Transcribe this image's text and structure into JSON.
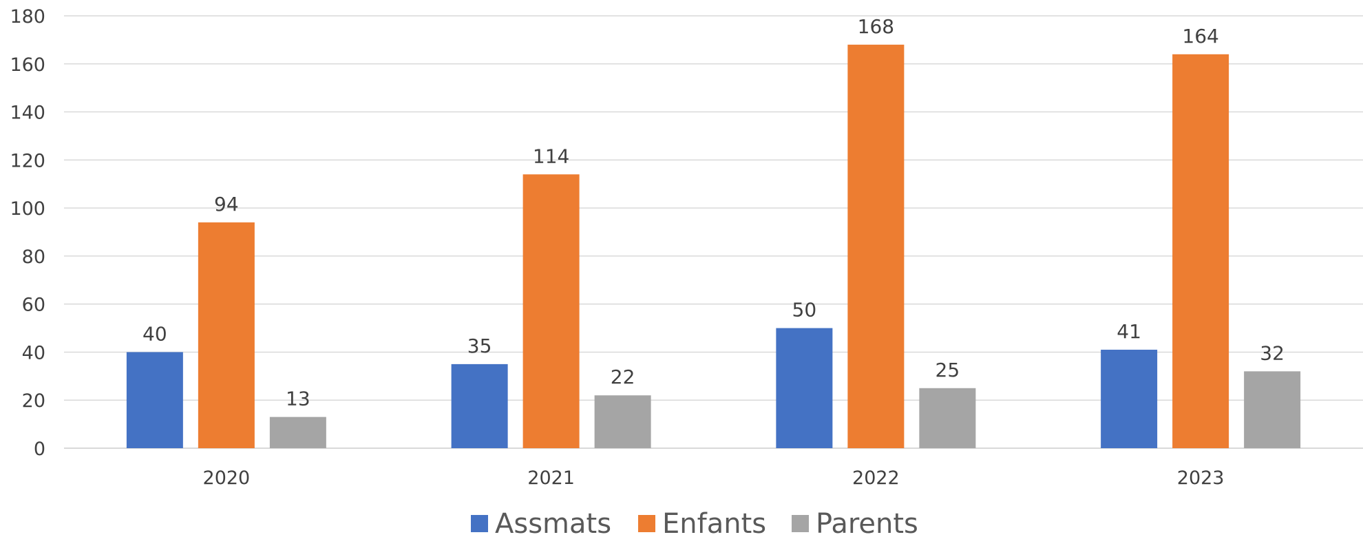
{
  "chart_data": {
    "type": "bar",
    "title": "",
    "xlabel": "",
    "ylabel": "",
    "categories": [
      "2020",
      "2021",
      "2022",
      "2023"
    ],
    "series": [
      {
        "name": "Assmats",
        "color": "#4472c4",
        "values": [
          40,
          35,
          50,
          41
        ]
      },
      {
        "name": "Enfants",
        "color": "#ed7d31",
        "values": [
          94,
          114,
          168,
          164
        ]
      },
      {
        "name": "Parents",
        "color": "#a5a5a5",
        "values": [
          13,
          22,
          25,
          32
        ]
      }
    ],
    "ylim": [
      0,
      180
    ],
    "yticks": [
      "0",
      "20",
      "40",
      "60",
      "80",
      "100",
      "120",
      "140",
      "160",
      "180"
    ],
    "grid": true,
    "data_labels": true,
    "legend_position": "bottom"
  }
}
